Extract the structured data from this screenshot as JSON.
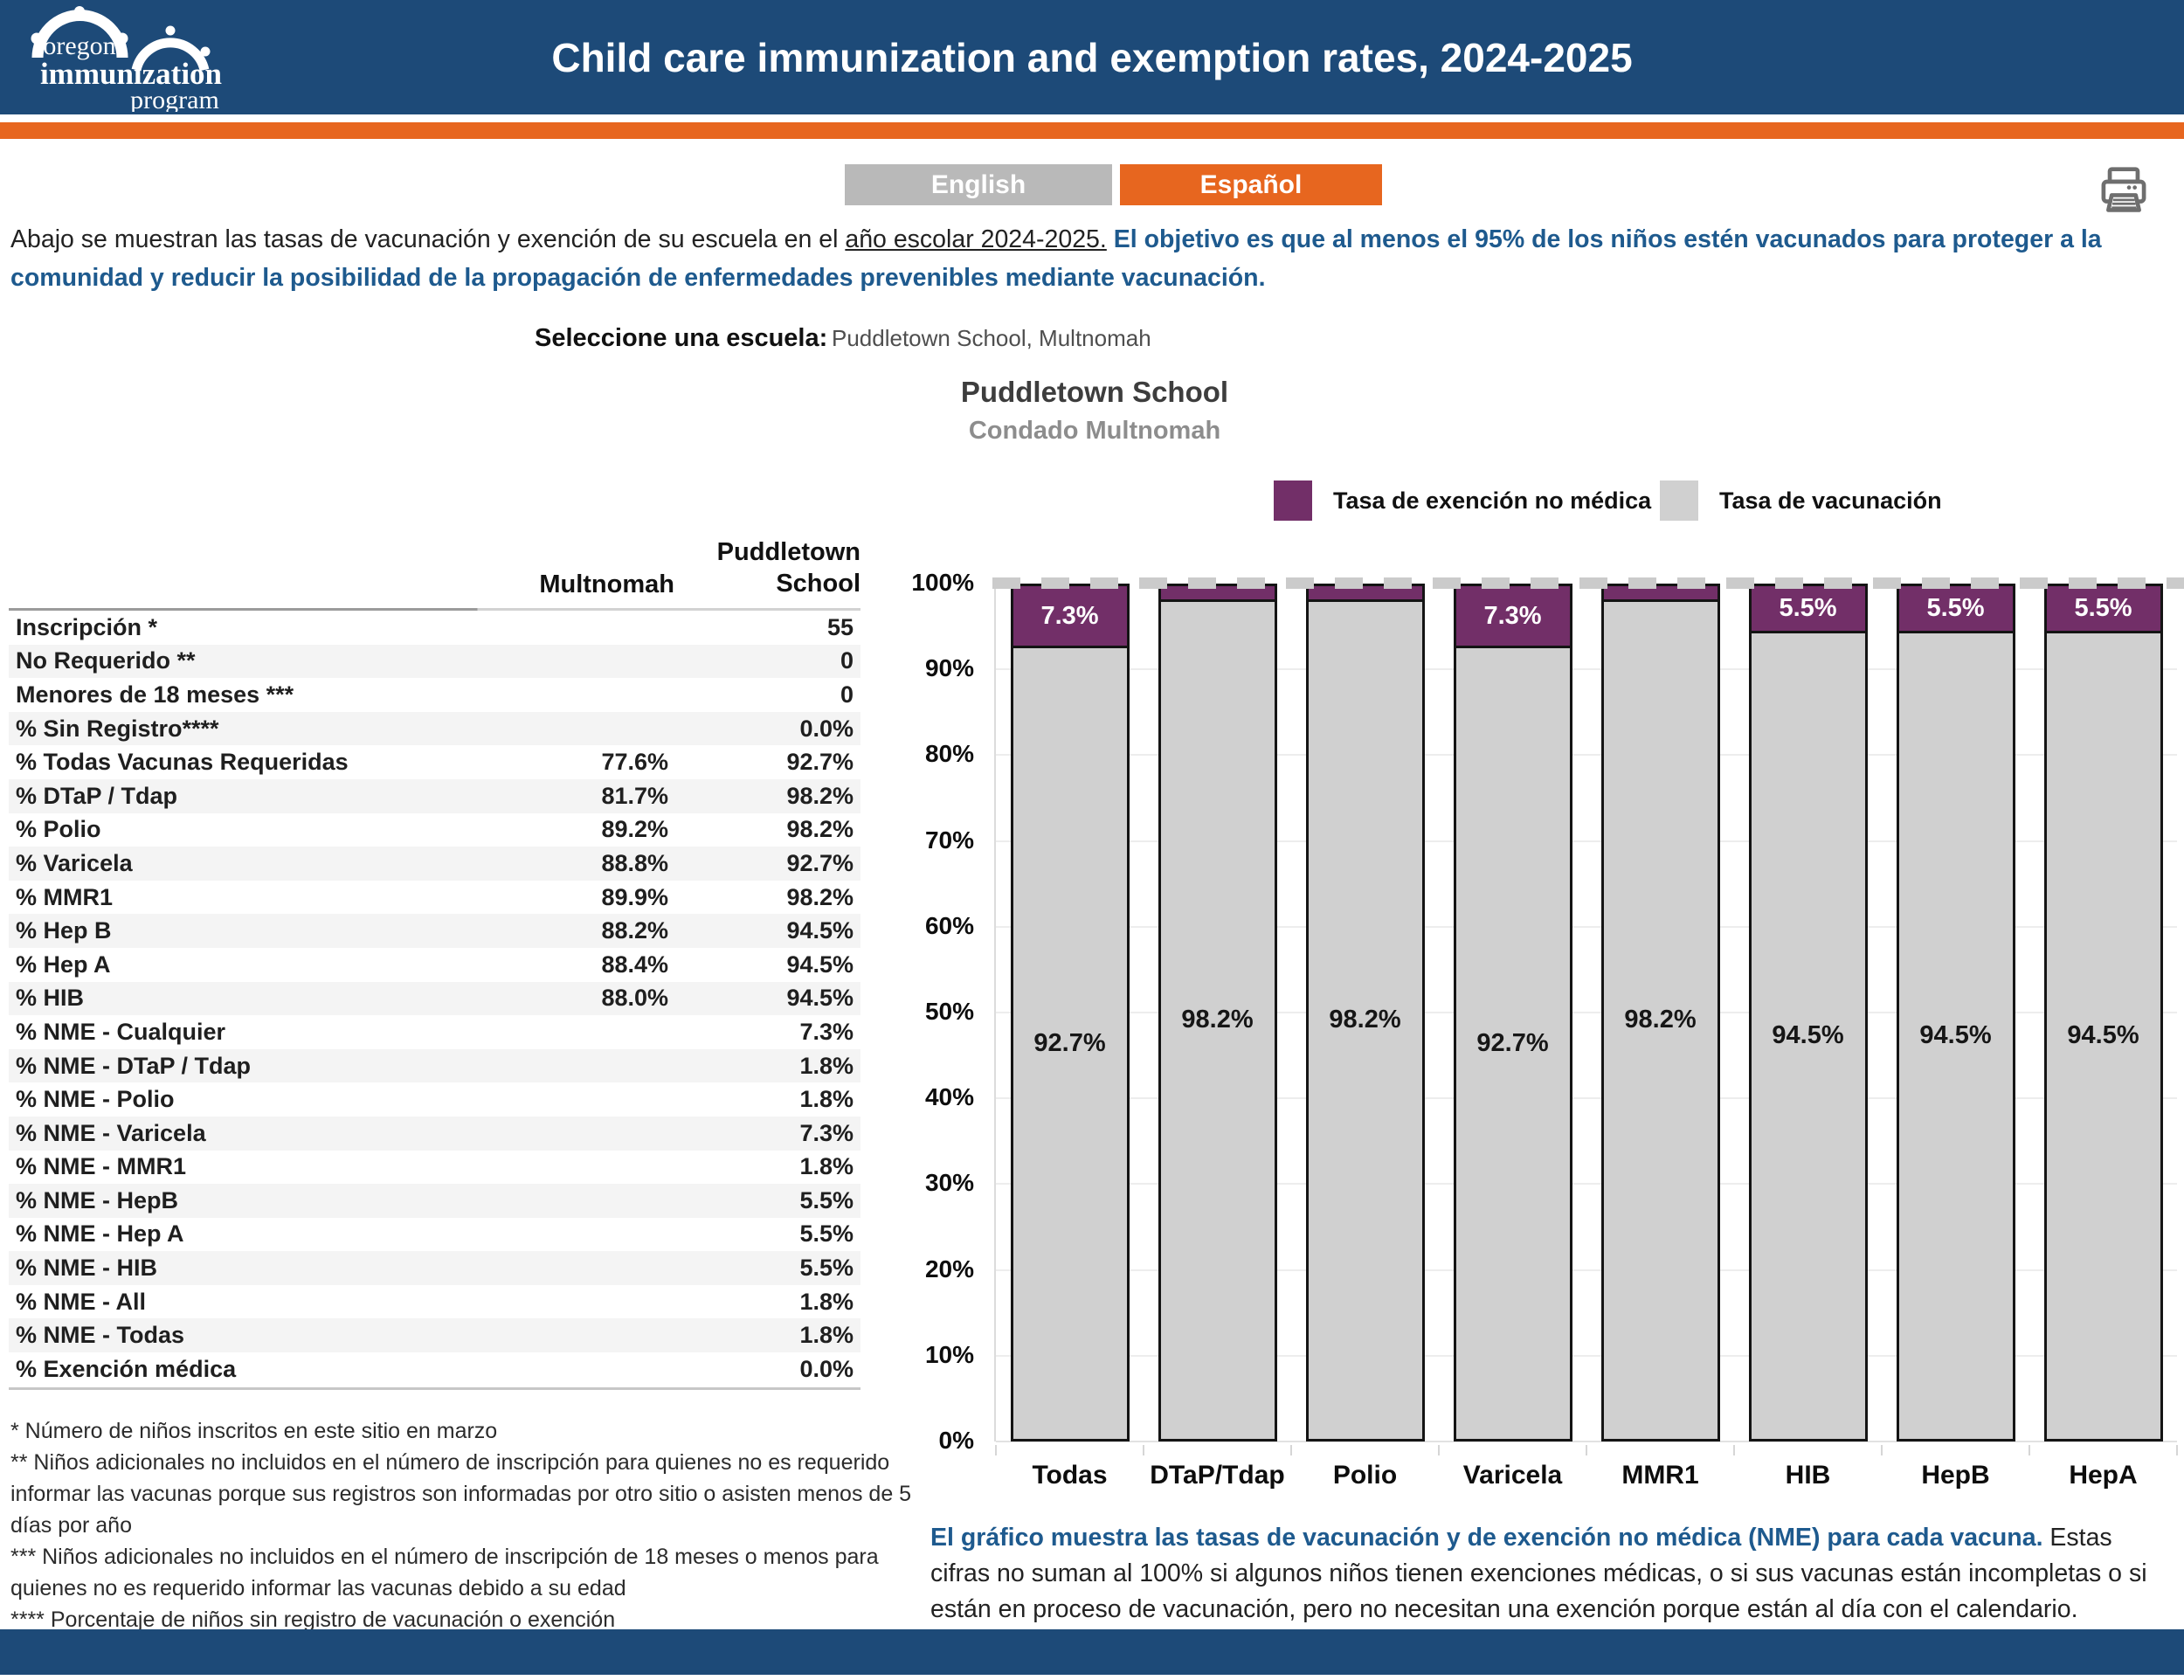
{
  "header": {
    "title": "Child care immunization and exemption rates, 2024-2025",
    "logo": {
      "line1": "oregon",
      "line2": "immunization",
      "line3": "program"
    }
  },
  "language_toggle": {
    "english": "English",
    "spanish": "Español"
  },
  "intro": {
    "part1": "Abajo se muestran las tasas de vacunación y exención de su escuela en el ",
    "underlined": "año escolar 2024-2025.",
    "part2": " El objetivo es que al menos el 95% de los niños estén vacunados para proteger a la comunidad y reducir la posibilidad de la propagación de enfermedades prevenibles mediante vacunación."
  },
  "school_selector": {
    "label": "Seleccione una escuela:",
    "value": "Puddletown School, Multnomah"
  },
  "chart_header": {
    "title": "Puddletown School",
    "subtitle": "Condado Multnomah"
  },
  "legend": [
    {
      "label": "Tasa de exención no médica",
      "color": "#722f68"
    },
    {
      "label": "Tasa de vacunación",
      "color": "#d0d0d0"
    }
  ],
  "table": {
    "columns": [
      "Multnomah",
      "Puddletown School"
    ],
    "rows": [
      {
        "label": "Inscripción *",
        "multnomah": "",
        "school": "55"
      },
      {
        "label": "No Requerido **",
        "multnomah": "",
        "school": "0"
      },
      {
        "label": "Menores de 18 meses ***",
        "multnomah": "",
        "school": "0"
      },
      {
        "label": "% Sin Registro****",
        "multnomah": "",
        "school": "0.0%"
      },
      {
        "label": "% Todas Vacunas Requeridas",
        "multnomah": "77.6%",
        "school": "92.7%"
      },
      {
        "label": "% DTaP / Tdap",
        "multnomah": "81.7%",
        "school": "98.2%"
      },
      {
        "label": "% Polio",
        "multnomah": "89.2%",
        "school": "98.2%"
      },
      {
        "label": "% Varicela",
        "multnomah": "88.8%",
        "school": "92.7%"
      },
      {
        "label": "% MMR1",
        "multnomah": "89.9%",
        "school": "98.2%"
      },
      {
        "label": "% Hep B",
        "multnomah": "88.2%",
        "school": "94.5%"
      },
      {
        "label": "% Hep A",
        "multnomah": "88.4%",
        "school": "94.5%"
      },
      {
        "label": "% HIB",
        "multnomah": "88.0%",
        "school": "94.5%"
      },
      {
        "label": "% NME - Cualquier",
        "multnomah": "",
        "school": "7.3%"
      },
      {
        "label": "% NME - DTaP / Tdap",
        "multnomah": "",
        "school": "1.8%"
      },
      {
        "label": "% NME - Polio",
        "multnomah": "",
        "school": "1.8%"
      },
      {
        "label": "% NME - Varicela",
        "multnomah": "",
        "school": "7.3%"
      },
      {
        "label": "% NME - MMR1",
        "multnomah": "",
        "school": "1.8%"
      },
      {
        "label": "% NME - HepB",
        "multnomah": "",
        "school": "5.5%"
      },
      {
        "label": "% NME - Hep A",
        "multnomah": "",
        "school": "5.5%"
      },
      {
        "label": "% NME - HIB",
        "multnomah": "",
        "school": "5.5%"
      },
      {
        "label": "% NME - All",
        "multnomah": "",
        "school": "1.8%"
      },
      {
        "label": "% NME - Todas",
        "multnomah": "",
        "school": "1.8%"
      },
      {
        "label": "% Exención médica",
        "multnomah": "",
        "school": "0.0%"
      }
    ]
  },
  "footnotes": [
    "* Número de niños inscritos en este sitio en marzo",
    "** Niños adicionales no incluidos en el número de inscripción para quienes no es requerido informar las vacunas porque sus registros son informadas por otro sitio o asisten menos de 5 días por año",
    "*** Niños adicionales no incluidos en el número de inscripción de 18 meses o menos para quienes no es requerido informar las vacunas debido a su edad",
    "**** Porcentaje de niños sin registro de vacunación o exención"
  ],
  "chart_data": {
    "type": "bar",
    "stacked": true,
    "title": "Puddletown School",
    "subtitle": "Condado Multnomah",
    "categories": [
      "Todas",
      "DTaP/Tdap",
      "Polio",
      "Varicela",
      "MMR1",
      "HIB",
      "HepB",
      "HepA"
    ],
    "series": [
      {
        "name": "Tasa de vacunación",
        "color": "#d0d0d0",
        "values": [
          92.7,
          98.2,
          98.2,
          92.7,
          98.2,
          94.5,
          94.5,
          94.5
        ]
      },
      {
        "name": "Tasa de exención no médica",
        "color": "#722f68",
        "values": [
          7.3,
          1.8,
          1.8,
          7.3,
          1.8,
          5.5,
          5.5,
          5.5
        ]
      }
    ],
    "y_ticks": [
      "100%",
      "90%",
      "80%",
      "70%",
      "60%",
      "50%",
      "40%",
      "30%",
      "20%",
      "10%",
      "0%"
    ],
    "ylim": [
      0,
      100
    ],
    "reference_line": 100,
    "grid": true,
    "legend_position": "top"
  },
  "explanation": {
    "bold": "El gráfico muestra las tasas de vacunación y de exención no médica (NME) para cada vacuna.",
    "rest": " Estas cifras no suman al 100% si algunos niños tienen exenciones médicas, o si sus vacunas están incompletas o si están en proceso de vacunación, pero no necesitan una exención porque están al día con el calendario."
  }
}
